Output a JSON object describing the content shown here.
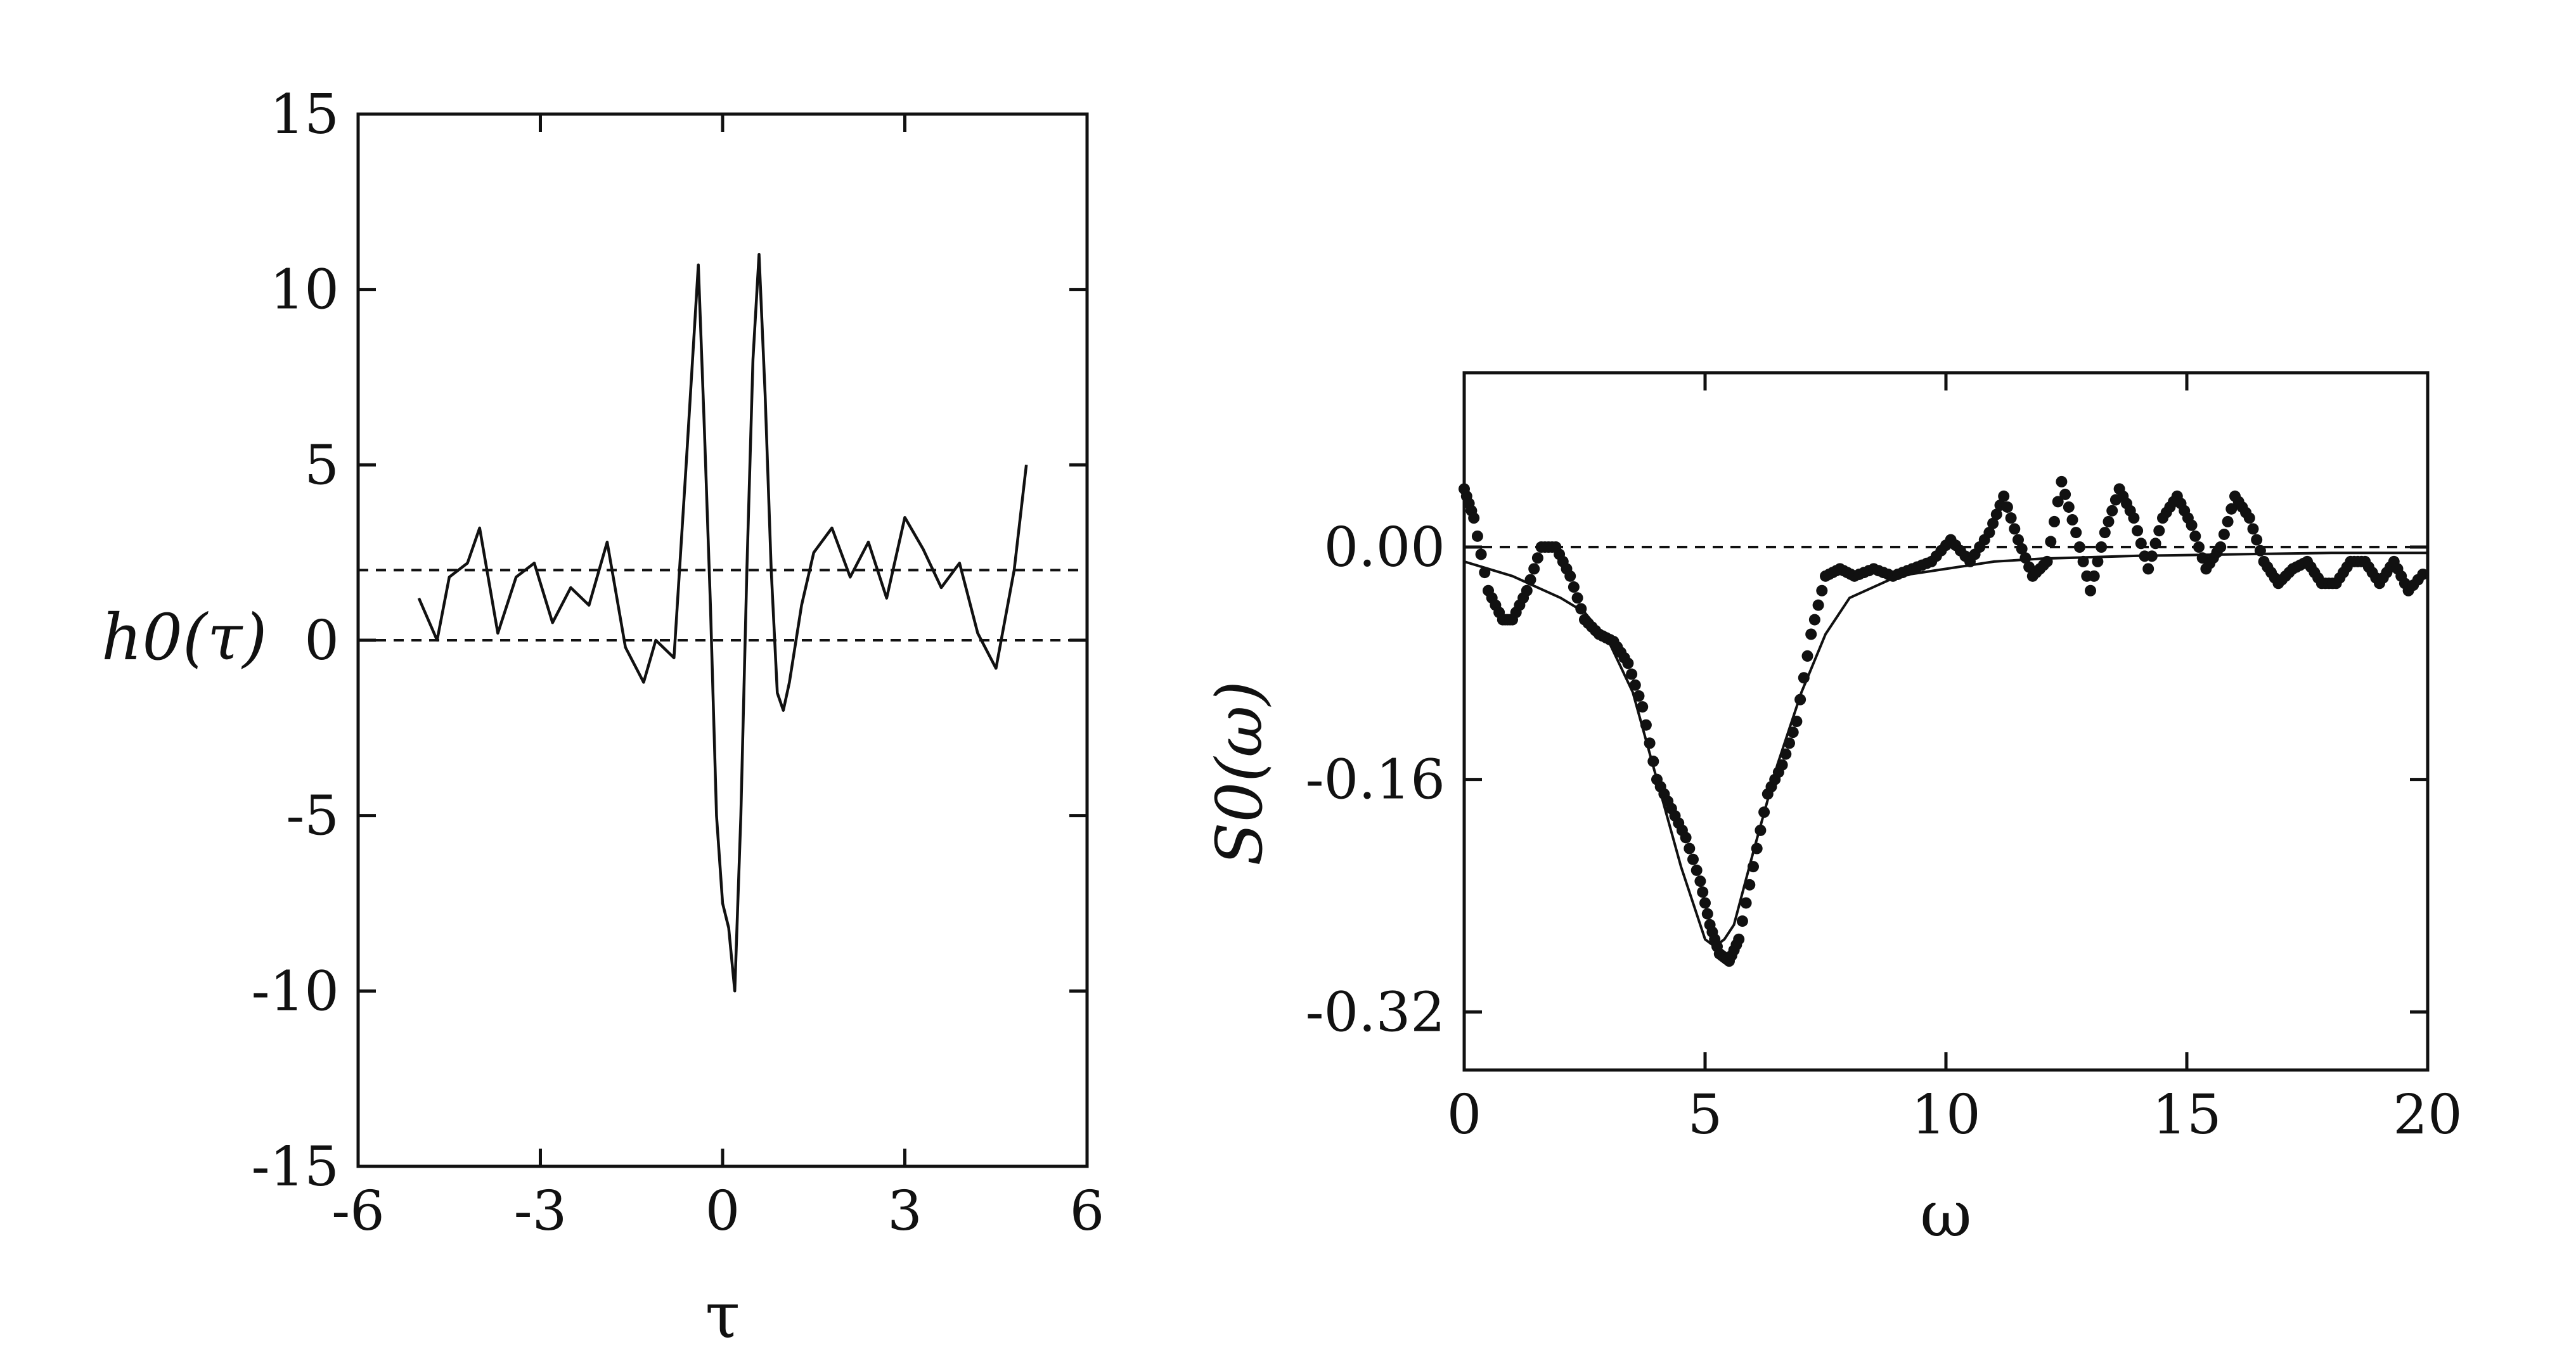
{
  "chart_data": [
    {
      "type": "line",
      "ylabel": "h0(τ)",
      "xlabel": "τ",
      "xlim": [
        -6,
        6
      ],
      "ylim": [
        -15,
        15
      ],
      "x_ticks": [
        "-6",
        "-3",
        "0",
        "3",
        "6"
      ],
      "y_ticks": [
        "15",
        "10",
        "5",
        "0",
        "-5",
        "-10",
        "-15"
      ],
      "x_tick_values": [
        -6,
        -3,
        0,
        3,
        6
      ],
      "y_tick_values": [
        15,
        10,
        5,
        0,
        -5,
        -10,
        -15
      ],
      "reference_lines": [
        2,
        0
      ],
      "grid": false,
      "series": [
        {
          "style": "solid-noisy",
          "x": [
            -5.0,
            -4.7,
            -4.5,
            -4.2,
            -4.0,
            -3.7,
            -3.4,
            -3.1,
            -2.8,
            -2.5,
            -2.2,
            -1.9,
            -1.6,
            -1.3,
            -1.1,
            -0.8,
            -0.6,
            -0.4,
            -0.3,
            -0.2,
            -0.1,
            0.0,
            0.1,
            0.2,
            0.3,
            0.4,
            0.5,
            0.6,
            0.7,
            0.8,
            0.9,
            1.0,
            1.1,
            1.3,
            1.5,
            1.8,
            2.1,
            2.4,
            2.7,
            3.0,
            3.3,
            3.6,
            3.9,
            4.2,
            4.5,
            4.8,
            5.0
          ],
          "y": [
            1.2,
            0.0,
            1.8,
            2.2,
            3.2,
            0.2,
            1.8,
            2.2,
            0.5,
            1.5,
            1.0,
            2.8,
            -0.2,
            -1.2,
            0.0,
            -0.5,
            5.0,
            10.7,
            6.0,
            1.0,
            -5.0,
            -7.5,
            -8.2,
            -10.0,
            -5.0,
            2.0,
            8.0,
            11.0,
            7.0,
            2.0,
            -1.5,
            -2.0,
            -1.2,
            1.0,
            2.5,
            3.2,
            1.8,
            2.8,
            1.2,
            3.5,
            2.6,
            1.5,
            2.2,
            0.2,
            -0.8,
            2.0,
            5.0
          ]
        }
      ]
    },
    {
      "type": "line",
      "ylabel": "S0(ω)",
      "xlabel": "ω",
      "xlim": [
        0,
        20
      ],
      "ylim": [
        -0.36,
        0.12
      ],
      "x_ticks": [
        "0",
        "5",
        "10",
        "15",
        "20"
      ],
      "y_ticks": [
        "0.00",
        "-0.16",
        "-0.32"
      ],
      "x_tick_values": [
        0,
        5,
        10,
        15,
        20
      ],
      "y_tick_values": [
        0.0,
        -0.16,
        -0.32
      ],
      "reference_lines": [
        0.0
      ],
      "grid": false,
      "series": [
        {
          "style": "dotted",
          "x": [
            0.0,
            0.2,
            0.5,
            0.8,
            1.0,
            1.3,
            1.6,
            1.9,
            2.2,
            2.5,
            2.8,
            3.1,
            3.4,
            3.7,
            4.0,
            4.3,
            4.6,
            4.9,
            5.1,
            5.3,
            5.5,
            5.7,
            6.0,
            6.3,
            6.6,
            6.9,
            7.2,
            7.5,
            7.8,
            8.1,
            8.5,
            8.9,
            9.3,
            9.7,
            10.1,
            10.5,
            10.9,
            11.2,
            11.5,
            11.8,
            12.1,
            12.4,
            12.7,
            13.0,
            13.3,
            13.6,
            13.9,
            14.2,
            14.5,
            14.8,
            15.1,
            15.4,
            15.7,
            16.0,
            16.3,
            16.6,
            16.9,
            17.2,
            17.5,
            17.8,
            18.1,
            18.4,
            18.7,
            19.0,
            19.3,
            19.6,
            20.0
          ],
          "y": [
            0.04,
            0.02,
            -0.03,
            -0.05,
            -0.05,
            -0.03,
            0.0,
            0.0,
            -0.02,
            -0.05,
            -0.06,
            -0.065,
            -0.08,
            -0.11,
            -0.16,
            -0.18,
            -0.2,
            -0.23,
            -0.26,
            -0.28,
            -0.285,
            -0.27,
            -0.22,
            -0.17,
            -0.15,
            -0.12,
            -0.06,
            -0.02,
            -0.015,
            -0.02,
            -0.015,
            -0.02,
            -0.015,
            -0.01,
            0.005,
            -0.01,
            0.01,
            0.035,
            0.005,
            -0.02,
            -0.01,
            0.045,
            0.01,
            -0.03,
            0.01,
            0.04,
            0.02,
            -0.015,
            0.02,
            0.035,
            0.015,
            -0.015,
            0.0,
            0.035,
            0.02,
            -0.01,
            -0.025,
            -0.015,
            -0.01,
            -0.025,
            -0.025,
            -0.01,
            -0.01,
            -0.025,
            -0.01,
            -0.03,
            -0.015
          ]
        },
        {
          "style": "solid-fit",
          "x": [
            0.0,
            1.0,
            2.0,
            2.5,
            3.0,
            3.5,
            4.0,
            4.5,
            5.0,
            5.2,
            5.4,
            5.6,
            6.0,
            6.5,
            7.0,
            7.5,
            8.0,
            9.0,
            10.0,
            11.0,
            12.0,
            14.0,
            16.0,
            18.0,
            20.0
          ],
          "y": [
            -0.01,
            -0.02,
            -0.035,
            -0.045,
            -0.065,
            -0.1,
            -0.16,
            -0.22,
            -0.27,
            -0.275,
            -0.27,
            -0.26,
            -0.21,
            -0.15,
            -0.1,
            -0.06,
            -0.035,
            -0.02,
            -0.015,
            -0.01,
            -0.008,
            -0.006,
            -0.005,
            -0.004,
            -0.004
          ]
        }
      ]
    }
  ]
}
